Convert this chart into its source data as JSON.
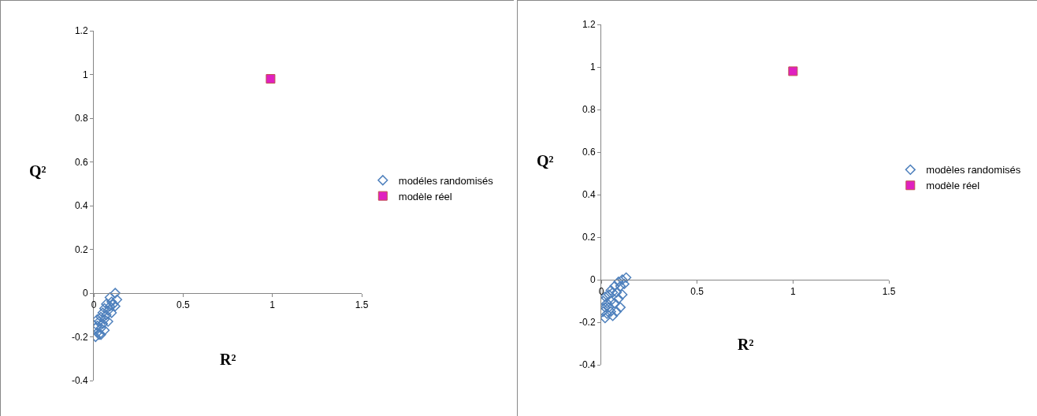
{
  "chart_data": [
    {
      "type": "scatter",
      "xlabel": "R²",
      "ylabel": "Q²",
      "xlim": [
        0,
        1.5
      ],
      "xticks": [
        0,
        0.5,
        1,
        1.5
      ],
      "ylim": [
        -0.4,
        1.2
      ],
      "yticks": [
        -0.4,
        -0.2,
        0,
        0.2,
        0.4,
        0.6,
        0.8,
        1,
        1.2
      ],
      "grid": false,
      "legend": "right",
      "series": [
        {
          "name": "modéles randomisés",
          "color": "#4f81bd",
          "marker": "diamond",
          "x": [
            0.01,
            0.02,
            0.02,
            0.03,
            0.03,
            0.04,
            0.04,
            0.05,
            0.05,
            0.06,
            0.06,
            0.07,
            0.07,
            0.08,
            0.08,
            0.09,
            0.09,
            0.1,
            0.1,
            0.11,
            0.12,
            0.13,
            0.12,
            0.02,
            0.01,
            0.06,
            0.04
          ],
          "values": [
            -0.2,
            -0.18,
            -0.15,
            -0.19,
            -0.13,
            -0.16,
            -0.11,
            -0.14,
            -0.09,
            -0.12,
            -0.07,
            -0.1,
            -0.05,
            -0.08,
            -0.13,
            -0.06,
            -0.02,
            -0.04,
            -0.09,
            -0.05,
            0.0,
            -0.03,
            -0.06,
            -0.12,
            -0.16,
            -0.17,
            -0.19
          ]
        },
        {
          "name": "modèle réel",
          "color": "#e020c0",
          "marker": "square",
          "x": [
            0.99
          ],
          "values": [
            0.98
          ]
        }
      ]
    },
    {
      "type": "scatter",
      "xlabel": "R²",
      "ylabel": "Q²",
      "xlim": [
        0,
        1.5
      ],
      "xticks": [
        0,
        0.5,
        1,
        1.5
      ],
      "ylim": [
        -0.4,
        1.2
      ],
      "yticks": [
        -0.4,
        -0.2,
        0,
        0.2,
        0.4,
        0.6,
        0.8,
        1,
        1.2
      ],
      "grid": false,
      "legend": "right",
      "series": [
        {
          "name": "modèles randomisés",
          "color": "#4f81bd",
          "marker": "diamond",
          "x": [
            0.01,
            0.01,
            0.02,
            0.02,
            0.03,
            0.03,
            0.04,
            0.04,
            0.05,
            0.05,
            0.06,
            0.06,
            0.07,
            0.07,
            0.08,
            0.08,
            0.09,
            0.09,
            0.1,
            0.1,
            0.11,
            0.11,
            0.12,
            0.13,
            0.02,
            0.05
          ],
          "values": [
            -0.1,
            -0.15,
            -0.18,
            -0.08,
            -0.11,
            -0.16,
            -0.07,
            -0.13,
            -0.05,
            -0.1,
            -0.17,
            -0.06,
            -0.03,
            -0.11,
            -0.15,
            -0.06,
            -0.01,
            -0.09,
            -0.03,
            -0.13,
            -0.07,
            0.0,
            -0.02,
            0.01,
            -0.13,
            -0.15
          ]
        },
        {
          "name": "modèle réel",
          "color": "#e020c0",
          "marker": "square",
          "x": [
            1.0
          ],
          "values": [
            0.98
          ]
        }
      ]
    }
  ]
}
